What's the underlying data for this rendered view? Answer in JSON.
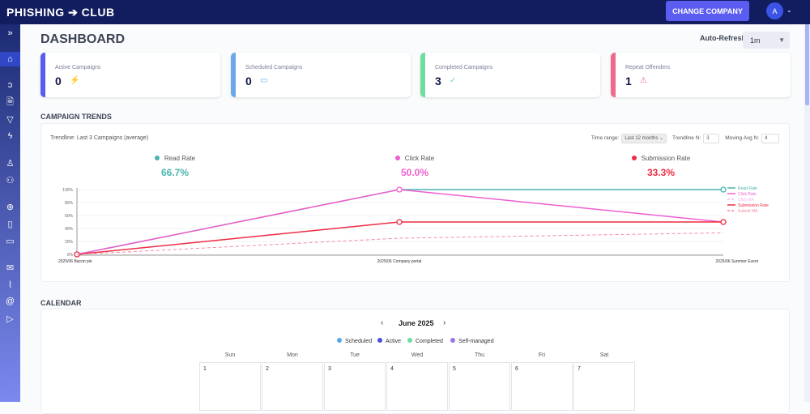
{
  "header": {
    "logo": "PHISHING ➔ CLUB",
    "change_company": "CHANGE COMPANY",
    "avatar": "A"
  },
  "sidebar": {
    "items": [
      "expand-icon",
      "home-icon",
      "hook-icon",
      "file-icon",
      "filter-icon",
      "bolt-icon",
      "user-icon",
      "users-icon",
      "globe-icon",
      "page-icon",
      "image-icon",
      "mail-icon",
      "attachment-icon",
      "at-icon",
      "send-icon"
    ]
  },
  "page": {
    "title": "DASHBOARD",
    "auto_refresh_label": "Auto-Refresh",
    "auto_refresh_value": "1m"
  },
  "cards": [
    {
      "label": "Active Campaigns",
      "value": "0",
      "icon": "⚡",
      "color": "#5a5cf0"
    },
    {
      "label": "Scheduled Campaigns",
      "value": "0",
      "icon": "▭",
      "color": "#6aa9e9"
    },
    {
      "label": "Completed Campaigns",
      "value": "3",
      "icon": "✓",
      "color": "#6fdca0"
    },
    {
      "label": "Repeat Offenders",
      "value": "1",
      "icon": "⚠",
      "color": "#f06a8c"
    }
  ],
  "trends": {
    "heading": "CAMPAIGN TRENDS",
    "trendline_label": "Trendline: Last 3 Campaigns (average)",
    "time_range_label": "Time range:",
    "time_range_value": "Last 12 months ⌄",
    "trendline_n_label": "Trendline N:",
    "trendline_n": "3",
    "moving_avg_label": "Moving Avg N:",
    "moving_avg": "4",
    "metrics": [
      {
        "name": "Read Rate",
        "value": "66.7%",
        "color": "#4bb3ad"
      },
      {
        "name": "Click Rate",
        "value": "50.0%",
        "color": "#ef5fcf"
      },
      {
        "name": "Submission Rate",
        "value": "33.3%",
        "color": "#ef2c45"
      }
    ]
  },
  "chart_data": {
    "type": "line",
    "categories": [
      "2025/06 Bacon pie",
      "2025/06 Company portal",
      "2025/06 Summer Event"
    ],
    "yticks": [
      "0%",
      "20%",
      "40%",
      "60%",
      "80%",
      "100%"
    ],
    "ylim": [
      0,
      100
    ],
    "series": [
      {
        "name": "Read Rate",
        "values": [
          0,
          100,
          100
        ],
        "color": "#4bb3ad",
        "dash": false
      },
      {
        "name": "Click Rate",
        "values": [
          0,
          100,
          50
        ],
        "color": "#ef5fcf",
        "dash": false
      },
      {
        "name": "Click MA",
        "values": [
          0,
          50,
          50
        ],
        "color": "#f5b5ec",
        "dash": true
      },
      {
        "name": "Submission Rate",
        "values": [
          0,
          50,
          50
        ],
        "color": "#ef2c45",
        "dash": false
      },
      {
        "name": "Submit MA",
        "values": [
          0,
          25,
          33.3
        ],
        "color": "#f58aa0",
        "dash": true
      }
    ],
    "legend": "right"
  },
  "calendar": {
    "heading": "CALENDAR",
    "month": "June 2025",
    "prev": "‹",
    "next": "›",
    "legend": [
      {
        "label": "Scheduled",
        "color": "#5aa6e8"
      },
      {
        "label": "Active",
        "color": "#4a4fe0"
      },
      {
        "label": "Completed",
        "color": "#6fdca0"
      },
      {
        "label": "Self-managed",
        "color": "#9a73e8"
      }
    ],
    "days": [
      "Sun",
      "Mon",
      "Tue",
      "Wed",
      "Thu",
      "Fri",
      "Sat"
    ],
    "dates": [
      "1",
      "2",
      "3",
      "4",
      "5",
      "6",
      "7"
    ]
  }
}
